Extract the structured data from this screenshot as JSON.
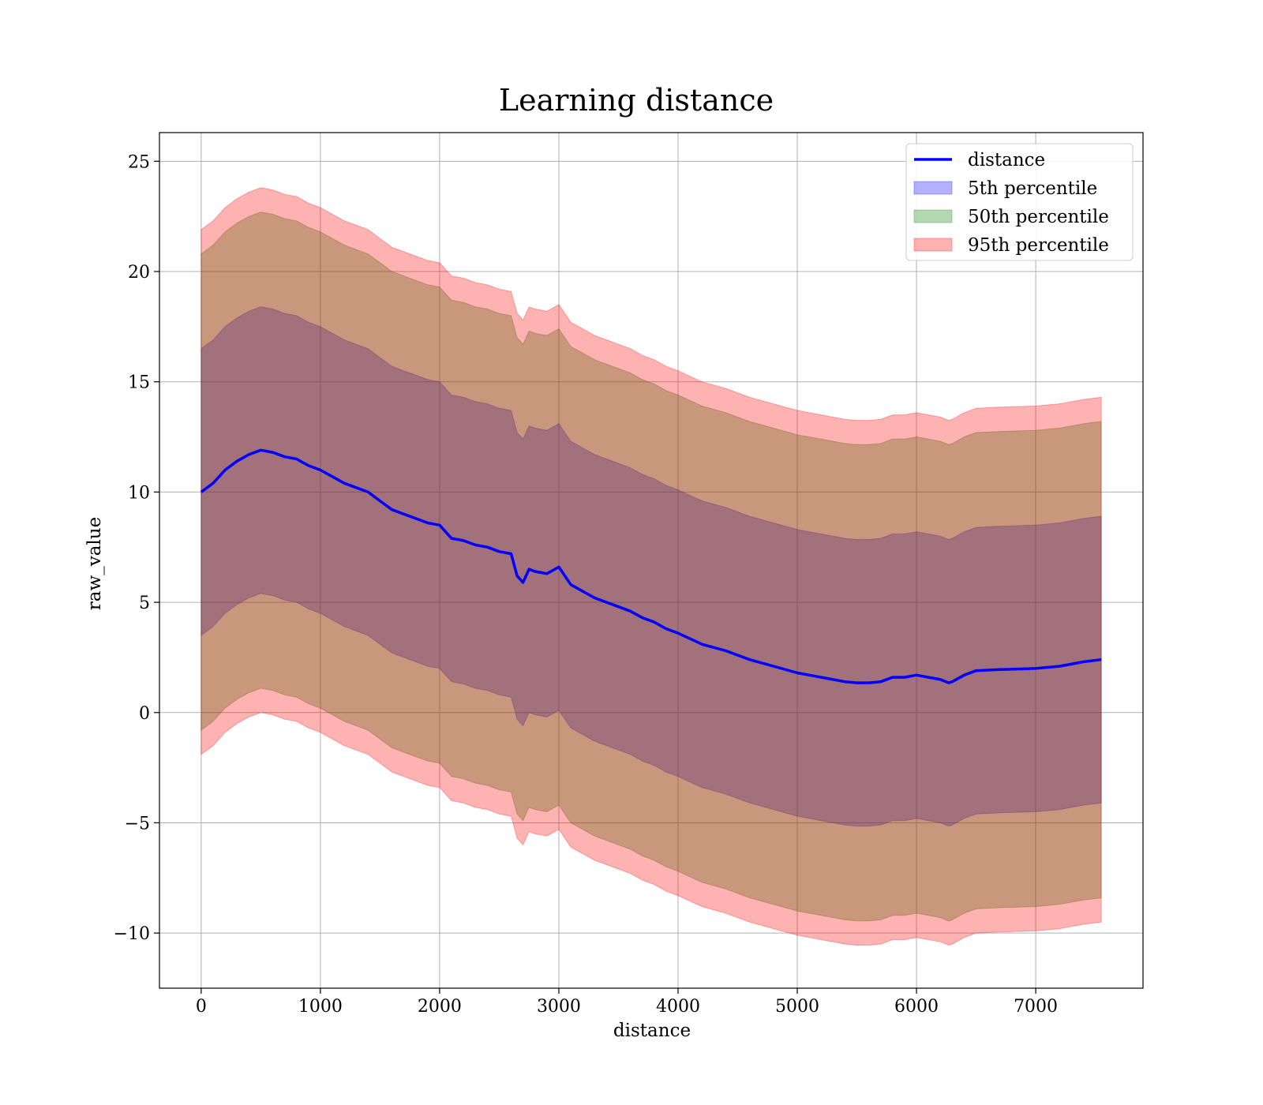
{
  "chart_data": {
    "type": "line",
    "title": "Learning distance",
    "xlabel": "distance",
    "ylabel": "raw_value",
    "xlim": [
      -350,
      7900
    ],
    "ylim": [
      -12.5,
      26.3
    ],
    "xticks": [
      0,
      1000,
      2000,
      3000,
      4000,
      5000,
      6000,
      7000
    ],
    "xtick_labels": [
      "0",
      "1000",
      "2000",
      "3000",
      "4000",
      "5000",
      "6000",
      "7000"
    ],
    "yticks": [
      -10,
      -5,
      0,
      5,
      10,
      15,
      20,
      25
    ],
    "ytick_labels": [
      "−10",
      "−5",
      "0",
      "5",
      "10",
      "15",
      "20",
      "25"
    ],
    "grid": true,
    "legend_position": "top-right",
    "x": [
      0,
      100,
      200,
      300,
      400,
      500,
      600,
      700,
      800,
      900,
      1000,
      1100,
      1200,
      1300,
      1400,
      1500,
      1600,
      1700,
      1800,
      1900,
      2000,
      2100,
      2200,
      2300,
      2400,
      2500,
      2600,
      2650,
      2700,
      2750,
      2800,
      2900,
      3000,
      3100,
      3200,
      3300,
      3400,
      3500,
      3600,
      3700,
      3800,
      3900,
      4000,
      4200,
      4400,
      4600,
      4800,
      5000,
      5200,
      5400,
      5500,
      5600,
      5700,
      5800,
      5900,
      6000,
      6100,
      6200,
      6270,
      6300,
      6400,
      6500,
      6700,
      7000,
      7200,
      7400,
      7550
    ],
    "series": [
      {
        "name": "distance",
        "kind": "line",
        "color": "#0000ff",
        "values": [
          10.0,
          10.4,
          11.0,
          11.4,
          11.7,
          11.9,
          11.8,
          11.6,
          11.5,
          11.2,
          11.0,
          10.7,
          10.4,
          10.2,
          10.0,
          9.6,
          9.2,
          9.0,
          8.8,
          8.6,
          8.5,
          7.9,
          7.8,
          7.6,
          7.5,
          7.3,
          7.2,
          6.2,
          5.9,
          6.5,
          6.4,
          6.3,
          6.6,
          5.8,
          5.5,
          5.2,
          5.0,
          4.8,
          4.6,
          4.3,
          4.1,
          3.8,
          3.6,
          3.1,
          2.8,
          2.4,
          2.1,
          1.8,
          1.6,
          1.4,
          1.35,
          1.35,
          1.4,
          1.6,
          1.6,
          1.7,
          1.6,
          1.5,
          1.35,
          1.4,
          1.7,
          1.9,
          1.95,
          2.0,
          2.1,
          2.3,
          2.4
        ]
      },
      {
        "name": "5th percentile",
        "kind": "band",
        "color": "#0000ff",
        "upper": [
          16.5,
          16.9,
          17.5,
          17.9,
          18.2,
          18.4,
          18.3,
          18.1,
          18.0,
          17.7,
          17.5,
          17.2,
          16.9,
          16.7,
          16.5,
          16.1,
          15.7,
          15.5,
          15.3,
          15.1,
          15.0,
          14.4,
          14.3,
          14.1,
          14.0,
          13.8,
          13.7,
          12.7,
          12.4,
          13.0,
          12.9,
          12.8,
          13.1,
          12.3,
          12.0,
          11.7,
          11.5,
          11.3,
          11.1,
          10.8,
          10.6,
          10.3,
          10.1,
          9.6,
          9.3,
          8.9,
          8.6,
          8.3,
          8.1,
          7.9,
          7.85,
          7.85,
          7.9,
          8.1,
          8.1,
          8.2,
          8.1,
          8.0,
          7.85,
          7.9,
          8.2,
          8.4,
          8.45,
          8.5,
          8.6,
          8.8,
          8.9
        ],
        "lower": [
          3.5,
          3.9,
          4.5,
          4.9,
          5.2,
          5.4,
          5.3,
          5.1,
          5.0,
          4.7,
          4.5,
          4.2,
          3.9,
          3.7,
          3.5,
          3.1,
          2.7,
          2.5,
          2.3,
          2.1,
          2.0,
          1.4,
          1.3,
          1.1,
          1.0,
          0.8,
          0.7,
          -0.3,
          -0.6,
          0.0,
          -0.1,
          -0.2,
          0.1,
          -0.7,
          -1.0,
          -1.3,
          -1.5,
          -1.7,
          -1.9,
          -2.2,
          -2.4,
          -2.7,
          -2.9,
          -3.4,
          -3.7,
          -4.1,
          -4.4,
          -4.7,
          -4.9,
          -5.1,
          -5.15,
          -5.15,
          -5.1,
          -4.9,
          -4.9,
          -4.8,
          -4.9,
          -5.0,
          -5.15,
          -5.1,
          -4.8,
          -4.6,
          -4.55,
          -4.5,
          -4.4,
          -4.2,
          -4.1
        ]
      },
      {
        "name": "50th percentile",
        "kind": "band",
        "color": "#008000",
        "upper": [
          20.8,
          21.2,
          21.8,
          22.2,
          22.5,
          22.7,
          22.6,
          22.4,
          22.3,
          22.0,
          21.8,
          21.5,
          21.2,
          21.0,
          20.8,
          20.4,
          20.0,
          19.8,
          19.6,
          19.4,
          19.3,
          18.7,
          18.6,
          18.4,
          18.3,
          18.1,
          18.0,
          17.0,
          16.7,
          17.3,
          17.2,
          17.1,
          17.4,
          16.6,
          16.3,
          16.0,
          15.8,
          15.6,
          15.4,
          15.1,
          14.9,
          14.6,
          14.4,
          13.9,
          13.6,
          13.2,
          12.9,
          12.6,
          12.4,
          12.2,
          12.15,
          12.15,
          12.2,
          12.4,
          12.4,
          12.5,
          12.4,
          12.3,
          12.15,
          12.2,
          12.5,
          12.7,
          12.75,
          12.8,
          12.9,
          13.1,
          13.2
        ],
        "lower": [
          -0.8,
          -0.4,
          0.2,
          0.6,
          0.9,
          1.1,
          1.0,
          0.8,
          0.7,
          0.4,
          0.2,
          -0.1,
          -0.4,
          -0.6,
          -0.8,
          -1.2,
          -1.6,
          -1.8,
          -2.0,
          -2.2,
          -2.3,
          -2.9,
          -3.0,
          -3.2,
          -3.3,
          -3.5,
          -3.6,
          -4.6,
          -4.9,
          -4.3,
          -4.4,
          -4.5,
          -4.2,
          -5.0,
          -5.3,
          -5.6,
          -5.8,
          -6.0,
          -6.2,
          -6.5,
          -6.7,
          -7.0,
          -7.2,
          -7.7,
          -8.0,
          -8.4,
          -8.7,
          -9.0,
          -9.2,
          -9.4,
          -9.45,
          -9.45,
          -9.4,
          -9.2,
          -9.2,
          -9.1,
          -9.2,
          -9.3,
          -9.45,
          -9.4,
          -9.1,
          -8.9,
          -8.85,
          -8.8,
          -8.7,
          -8.5,
          -8.4
        ]
      },
      {
        "name": "95th percentile",
        "kind": "band",
        "color": "#ff0000",
        "upper": [
          21.9,
          22.3,
          22.9,
          23.3,
          23.6,
          23.8,
          23.7,
          23.5,
          23.4,
          23.1,
          22.9,
          22.6,
          22.3,
          22.1,
          21.9,
          21.5,
          21.1,
          20.9,
          20.7,
          20.5,
          20.4,
          19.8,
          19.7,
          19.5,
          19.4,
          19.2,
          19.1,
          18.1,
          17.8,
          18.4,
          18.3,
          18.2,
          18.5,
          17.7,
          17.4,
          17.1,
          16.9,
          16.7,
          16.5,
          16.2,
          16.0,
          15.7,
          15.5,
          15.0,
          14.7,
          14.3,
          14.0,
          13.7,
          13.5,
          13.3,
          13.25,
          13.25,
          13.3,
          13.5,
          13.5,
          13.6,
          13.5,
          13.4,
          13.25,
          13.3,
          13.6,
          13.8,
          13.85,
          13.9,
          14.0,
          14.2,
          14.3
        ],
        "lower": [
          -1.9,
          -1.5,
          -0.9,
          -0.5,
          -0.2,
          0.0,
          -0.1,
          -0.3,
          -0.4,
          -0.7,
          -0.9,
          -1.2,
          -1.5,
          -1.7,
          -1.9,
          -2.3,
          -2.7,
          -2.9,
          -3.1,
          -3.3,
          -3.4,
          -4.0,
          -4.1,
          -4.3,
          -4.4,
          -4.6,
          -4.7,
          -5.7,
          -6.0,
          -5.4,
          -5.5,
          -5.6,
          -5.3,
          -6.1,
          -6.4,
          -6.7,
          -6.9,
          -7.1,
          -7.3,
          -7.6,
          -7.8,
          -8.1,
          -8.3,
          -8.8,
          -9.1,
          -9.5,
          -9.8,
          -10.1,
          -10.3,
          -10.5,
          -10.55,
          -10.55,
          -10.5,
          -10.3,
          -10.3,
          -10.2,
          -10.3,
          -10.4,
          -10.55,
          -10.5,
          -10.2,
          -10.0,
          -9.95,
          -9.9,
          -9.8,
          -9.6,
          -9.5
        ]
      }
    ]
  }
}
